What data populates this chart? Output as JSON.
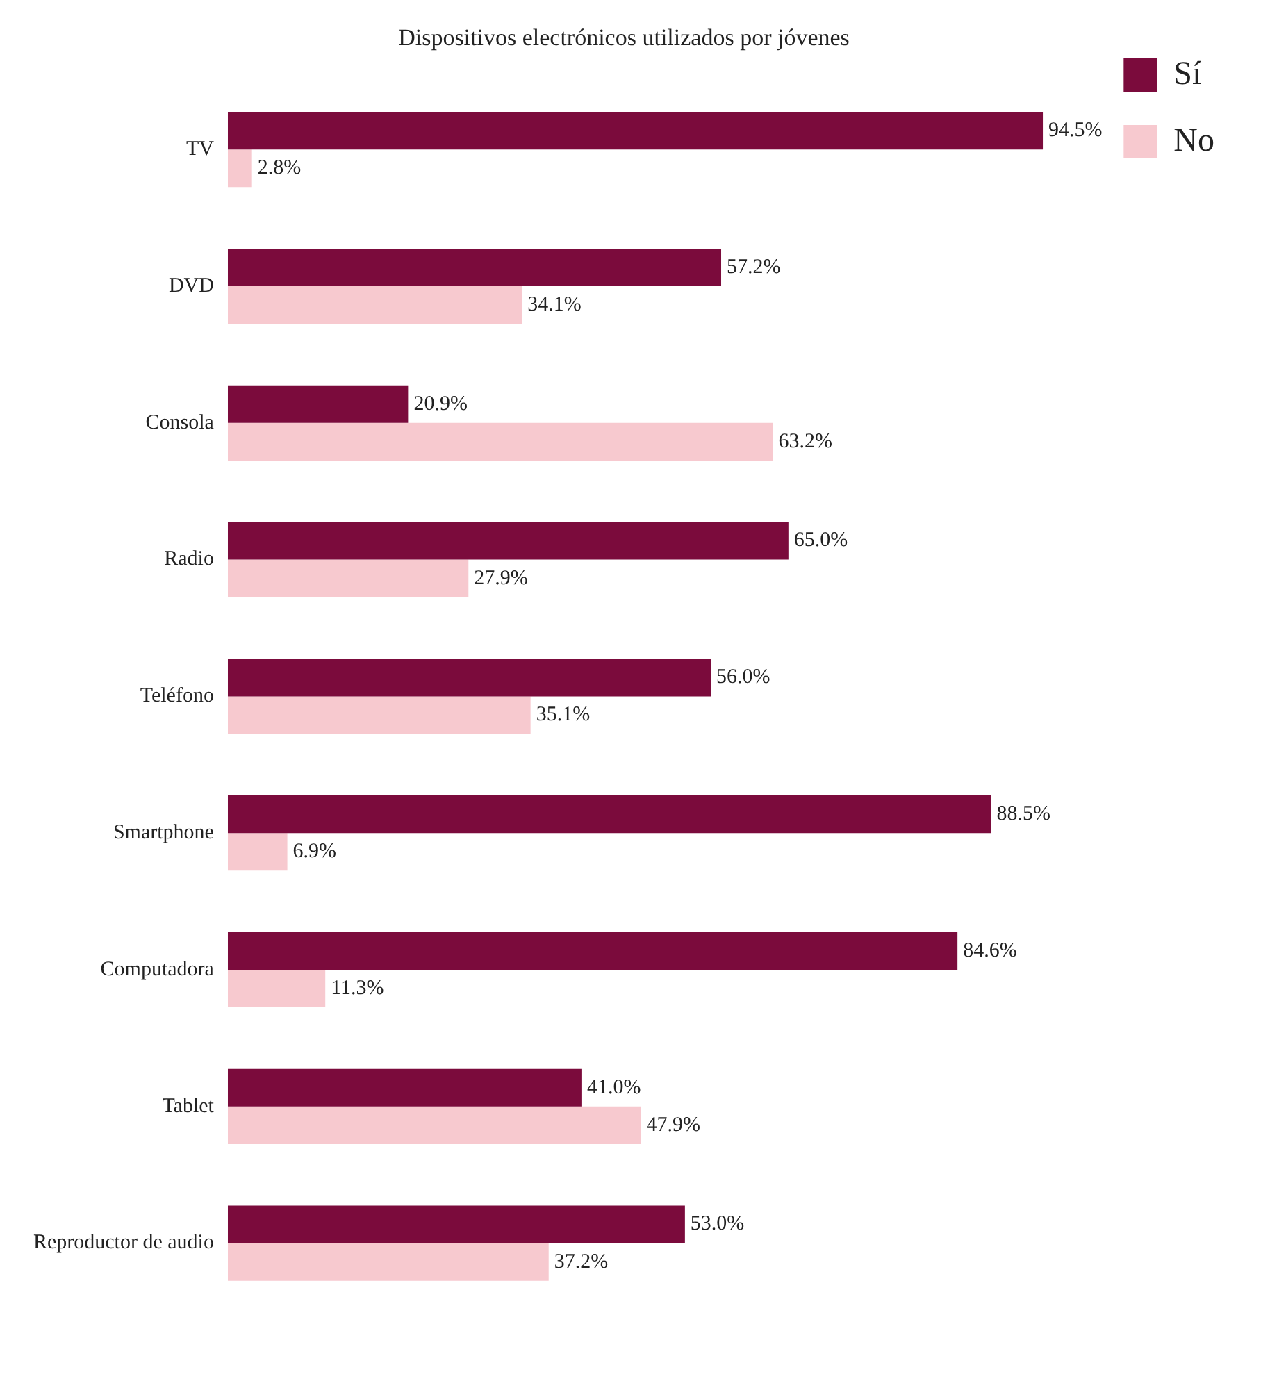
{
  "chart_data": {
    "type": "bar",
    "orientation": "horizontal",
    "title": "Dispositivos electrónicos utilizados por jóvenes",
    "categories": [
      "TV",
      "DVD",
      "Consola",
      "Radio",
      "Teléfono",
      "Smartphone",
      "Computadora",
      "Tablet",
      "Reproductor de audio"
    ],
    "series": [
      {
        "name": "Sí",
        "color": "#7b0b3c",
        "values": [
          94.5,
          57.2,
          20.9,
          65.0,
          56.0,
          88.5,
          84.6,
          41.0,
          53.0
        ],
        "value_labels": [
          "94.5%",
          "57.2%",
          "20.9%",
          "65.0%",
          "56.0%",
          "88.5%",
          "84.6%",
          "41.0%",
          "53.0%"
        ]
      },
      {
        "name": "No",
        "color": "#f7c9cf",
        "values": [
          2.8,
          34.1,
          63.2,
          27.9,
          35.1,
          6.9,
          11.3,
          47.9,
          37.2
        ],
        "value_labels": [
          "2.8%",
          "34.1%",
          "63.2%",
          "27.9%",
          "35.1%",
          "6.9%",
          "11.3%",
          "47.9%",
          "37.2%"
        ]
      }
    ],
    "grid": false,
    "legend": "right"
  }
}
